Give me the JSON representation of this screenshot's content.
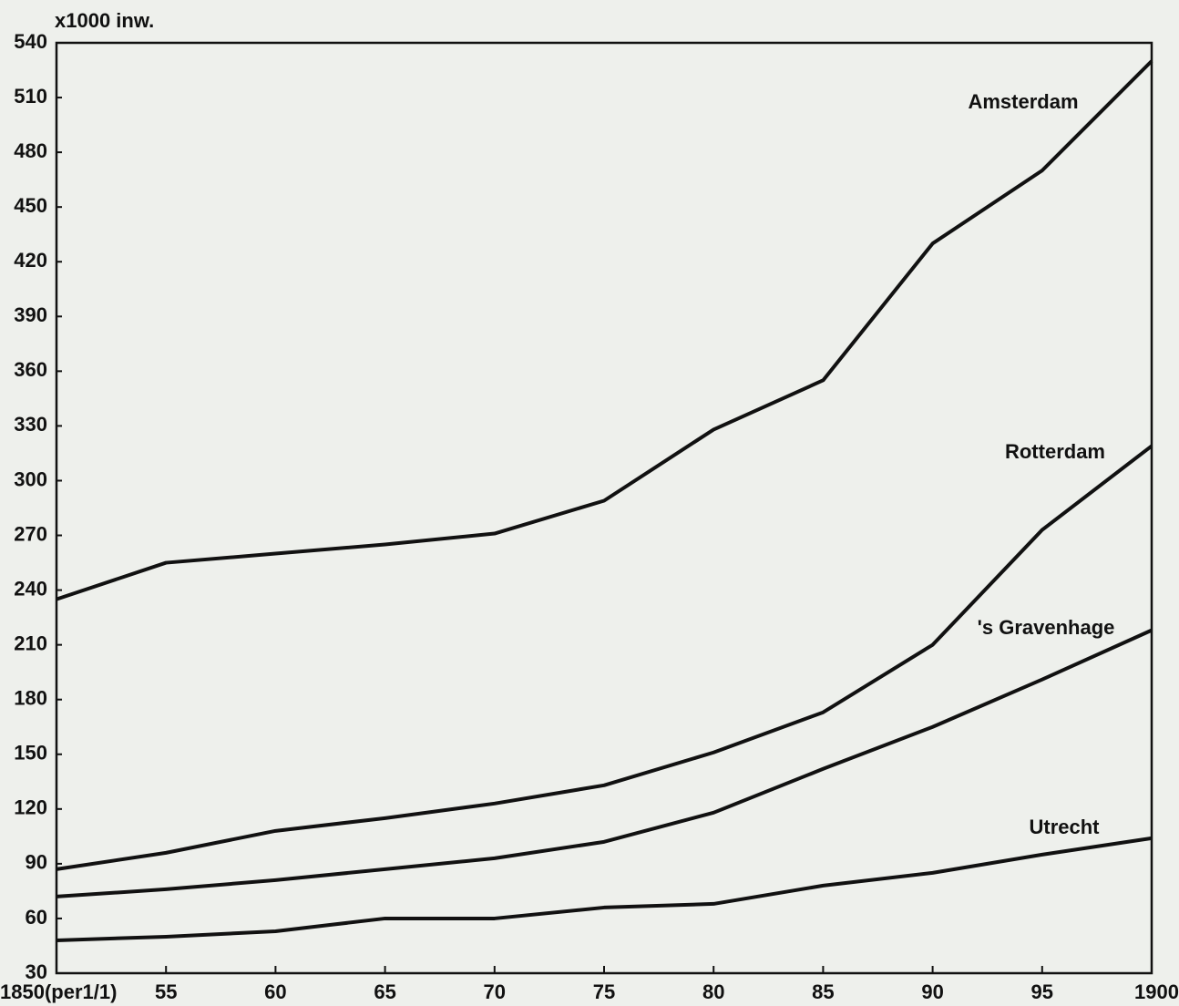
{
  "chart_data": {
    "type": "line",
    "y_label": "x1000 inw.",
    "x": [
      1850,
      1855,
      1860,
      1865,
      1870,
      1875,
      1880,
      1885,
      1890,
      1895,
      1900
    ],
    "series": [
      {
        "name": "Amsterdam",
        "color": "#111111",
        "values": [
          235,
          255,
          260,
          265,
          271,
          289,
          328,
          355,
          430,
          470,
          530
        ]
      },
      {
        "name": "Rotterdam",
        "color": "#111111",
        "values": [
          87,
          96,
          108,
          115,
          123,
          133,
          151,
          173,
          210,
          273,
          319
        ]
      },
      {
        "name": "'s Gravenhage",
        "color": "#111111",
        "values": [
          72,
          76,
          81,
          87,
          93,
          102,
          118,
          142,
          165,
          191,
          218
        ]
      },
      {
        "name": "Utrecht",
        "color": "#111111",
        "values": [
          48,
          50,
          53,
          60,
          60,
          66,
          68,
          78,
          85,
          95,
          104
        ]
      }
    ],
    "xlim": [
      1850,
      1900
    ],
    "xticks": [
      {
        "value": 1850,
        "label": "1850(per1/1)"
      },
      {
        "value": 1855,
        "label": "55"
      },
      {
        "value": 1860,
        "label": "60"
      },
      {
        "value": 1865,
        "label": "65"
      },
      {
        "value": 1870,
        "label": "70"
      },
      {
        "value": 1875,
        "label": "75"
      },
      {
        "value": 1880,
        "label": "80"
      },
      {
        "value": 1885,
        "label": "85"
      },
      {
        "value": 1890,
        "label": "90"
      },
      {
        "value": 1895,
        "label": "95"
      },
      1900
    ],
    "ylim": [
      30,
      540
    ],
    "yticks": [
      30,
      60,
      90,
      120,
      150,
      180,
      210,
      240,
      270,
      300,
      330,
      360,
      390,
      420,
      450,
      480,
      510,
      540
    ],
    "grid": false
  }
}
